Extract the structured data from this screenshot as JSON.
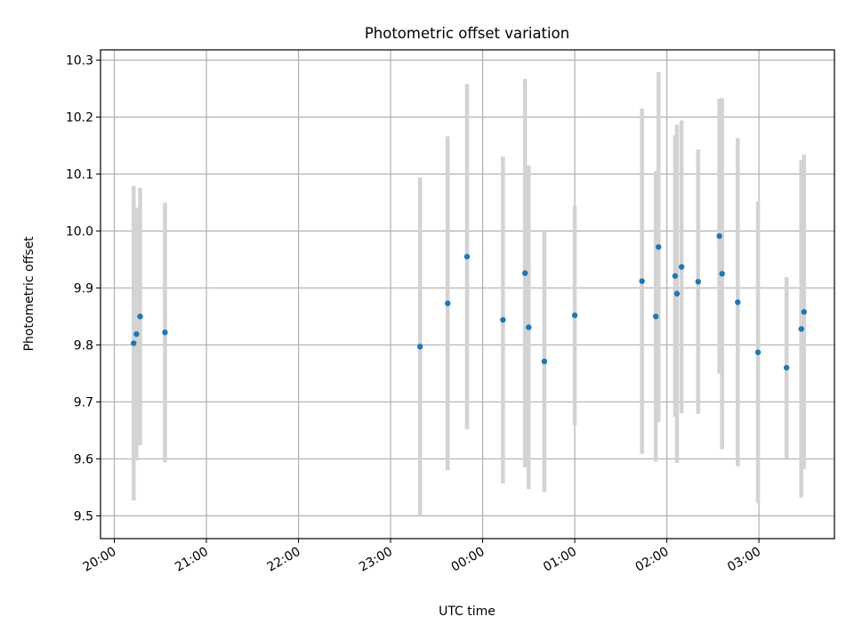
{
  "chart_data": {
    "type": "scatter",
    "title": "Photometric offset variation",
    "xlabel": "UTC time",
    "ylabel": "Photometric offset",
    "grid": true,
    "legend": "none",
    "colors": {
      "point": "#1f77b4",
      "errorbar": "#d3d3d3",
      "grid": "#b0b0b0",
      "axis": "#000000"
    },
    "xlim_hours": [
      19.85,
      27.82
    ],
    "ylim": [
      9.46,
      10.318
    ],
    "x_ticks": [
      {
        "value": 20,
        "label": "20:00"
      },
      {
        "value": 21,
        "label": "21:00"
      },
      {
        "value": 22,
        "label": "22:00"
      },
      {
        "value": 23,
        "label": "23:00"
      },
      {
        "value": 24,
        "label": "00:00"
      },
      {
        "value": 25,
        "label": "01:00"
      },
      {
        "value": 26,
        "label": "02:00"
      },
      {
        "value": 27,
        "label": "03:00"
      }
    ],
    "y_ticks": [
      {
        "value": 9.5,
        "label": "9.5"
      },
      {
        "value": 9.6,
        "label": "9.6"
      },
      {
        "value": 9.7,
        "label": "9.7"
      },
      {
        "value": 9.8,
        "label": "9.8"
      },
      {
        "value": 9.9,
        "label": "9.9"
      },
      {
        "value": 10.0,
        "label": "10.0"
      },
      {
        "value": 10.1,
        "label": "10.1"
      },
      {
        "value": 10.2,
        "label": "10.2"
      },
      {
        "value": 10.3,
        "label": "10.3"
      }
    ],
    "points": [
      {
        "t": 20.21,
        "y": 9.803,
        "err": 0.276
      },
      {
        "t": 20.24,
        "y": 9.819,
        "err": 0.222
      },
      {
        "t": 20.28,
        "y": 9.85,
        "err": 0.226
      },
      {
        "t": 20.55,
        "y": 9.822,
        "err": 0.228
      },
      {
        "t": 23.32,
        "y": 9.797,
        "err": 0.297
      },
      {
        "t": 23.62,
        "y": 9.873,
        "err": 0.293
      },
      {
        "t": 23.83,
        "y": 9.955,
        "err": 0.303
      },
      {
        "t": 24.22,
        "y": 9.844,
        "err": 0.287
      },
      {
        "t": 24.46,
        "y": 9.926,
        "err": 0.341
      },
      {
        "t": 24.5,
        "y": 9.831,
        "err": 0.284
      },
      {
        "t": 24.67,
        "y": 9.771,
        "err": 0.229
      },
      {
        "t": 25.0,
        "y": 9.852,
        "err": 0.193
      },
      {
        "t": 25.73,
        "y": 9.912,
        "err": 0.303
      },
      {
        "t": 25.88,
        "y": 9.85,
        "err": 0.255
      },
      {
        "t": 25.91,
        "y": 9.972,
        "err": 0.307
      },
      {
        "t": 26.09,
        "y": 9.921,
        "err": 0.247
      },
      {
        "t": 26.11,
        "y": 9.89,
        "err": 0.297
      },
      {
        "t": 26.16,
        "y": 9.937,
        "err": 0.257
      },
      {
        "t": 26.34,
        "y": 9.911,
        "err": 0.232
      },
      {
        "t": 26.57,
        "y": 9.991,
        "err": 0.241
      },
      {
        "t": 26.6,
        "y": 9.925,
        "err": 0.308
      },
      {
        "t": 26.77,
        "y": 9.875,
        "err": 0.288
      },
      {
        "t": 26.99,
        "y": 9.787,
        "err": 0.265
      },
      {
        "t": 27.3,
        "y": 9.76,
        "err": 0.159
      },
      {
        "t": 27.46,
        "y": 9.828,
        "err": 0.296
      },
      {
        "t": 27.49,
        "y": 9.858,
        "err": 0.276
      }
    ]
  }
}
